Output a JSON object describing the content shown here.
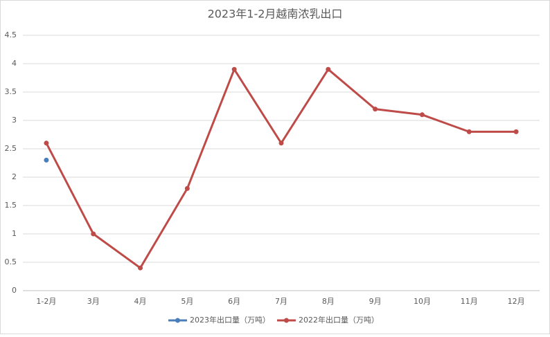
{
  "chart_data": {
    "type": "line",
    "title": "2023年1-2月越南浓乳出口",
    "categories": [
      "1-2月",
      "3月",
      "4月",
      "5月",
      "6月",
      "7月",
      "8月",
      "9月",
      "10月",
      "11月",
      "12月"
    ],
    "series": [
      {
        "name": "2023年出口量（万吨）",
        "color": "#4a7ebb",
        "values": [
          2.3,
          null,
          null,
          null,
          null,
          null,
          null,
          null,
          null,
          null,
          null
        ]
      },
      {
        "name": "2022年出口量（万吨）",
        "color": "#be4b48",
        "values": [
          2.6,
          1.0,
          0.4,
          1.8,
          3.9,
          2.6,
          3.9,
          3.2,
          3.1,
          2.8,
          2.8
        ]
      }
    ],
    "ylim": [
      0,
      4.5
    ],
    "yticks": [
      0,
      0.5,
      1,
      1.5,
      2,
      2.5,
      3,
      3.5,
      4,
      4.5
    ],
    "grid": true,
    "legend": "bottom"
  }
}
